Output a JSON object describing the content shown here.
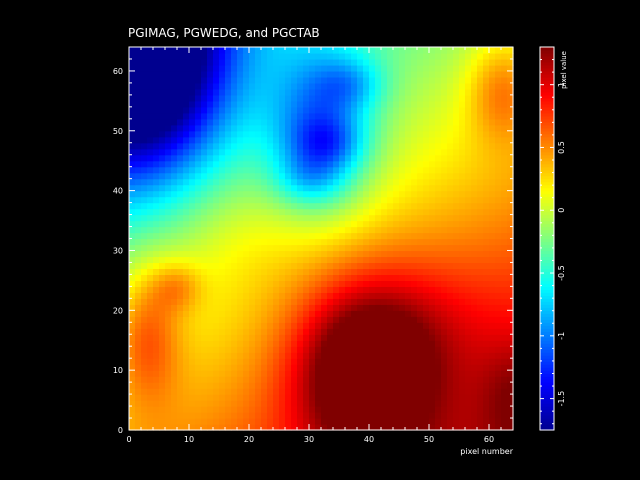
{
  "chart_data": {
    "type": "heatmap",
    "title": "PGIMAG, PGWEDG, and PGCTAB",
    "xlabel": "pixel number",
    "ylabel": "",
    "xlim": [
      0,
      64
    ],
    "ylim": [
      0,
      64
    ],
    "grid_size": 64,
    "x_ticks": [
      0,
      10,
      20,
      30,
      40,
      50,
      60
    ],
    "x_tick_labels": [
      "0",
      "10",
      "20",
      "30",
      "40",
      "50",
      "60"
    ],
    "y_ticks": [
      0,
      10,
      20,
      30,
      40,
      50,
      60
    ],
    "y_tick_labels": [
      "0",
      "10",
      "20",
      "30",
      "40",
      "50",
      "60"
    ],
    "colorbar": {
      "label": "pixel value",
      "range": [
        -1.75,
        1.3
      ],
      "ticks": [
        -1.5,
        -1,
        -0.5,
        0,
        0.5,
        1
      ],
      "tick_labels": [
        "-1.5",
        "-1",
        "-0.5",
        "0",
        "0.5",
        "1"
      ]
    },
    "colormap": {
      "stops": [
        {
          "pos": 0.0,
          "color": "#00008f"
        },
        {
          "pos": 0.125,
          "color": "#0000ff"
        },
        {
          "pos": 0.375,
          "color": "#00ffff"
        },
        {
          "pos": 0.625,
          "color": "#ffff00"
        },
        {
          "pos": 0.875,
          "color": "#ff0000"
        },
        {
          "pos": 1.0,
          "color": "#800000"
        }
      ]
    },
    "field_features": [
      {
        "kind": "base",
        "x_coef": 0.0,
        "y_coef": 0.0,
        "value": 0.35
      },
      {
        "kind": "gradient",
        "x_coef": 0.0125,
        "y_coef": -0.018,
        "value": 0
      },
      {
        "kind": "gaussian",
        "cx": 1,
        "cy": 63,
        "sx": 10,
        "sy": 14,
        "value": -2.2
      },
      {
        "kind": "gaussian",
        "cx": 39,
        "cy": 10,
        "sx": 8,
        "sy": 10,
        "value": 1.1
      },
      {
        "kind": "gaussian",
        "cx": 48,
        "cy": 18,
        "sx": 10,
        "sy": 9,
        "value": 0.25
      },
      {
        "kind": "gaussian",
        "cx": 64,
        "cy": 6,
        "sx": 4,
        "sy": 6,
        "value": 0.25
      },
      {
        "kind": "gaussian",
        "cx": 32,
        "cy": 50,
        "sx": 6,
        "sy": 9,
        "value": -0.9
      },
      {
        "kind": "gaussian",
        "cx": 37,
        "cy": 58,
        "sx": 4,
        "sy": 3,
        "value": -0.35
      },
      {
        "kind": "gaussian",
        "cx": 33,
        "cy": 48,
        "sx": 4,
        "sy": 3,
        "value": -0.35
      },
      {
        "kind": "gaussian",
        "cx": 30,
        "cy": 42,
        "sx": 4,
        "sy": 3,
        "value": -0.3
      },
      {
        "kind": "gaussian",
        "cx": 3,
        "cy": 16,
        "sx": 4,
        "sy": 8,
        "value": 0.55
      },
      {
        "kind": "gaussian",
        "cx": 8,
        "cy": 24,
        "sx": 3,
        "sy": 3,
        "value": 0.35
      },
      {
        "kind": "gaussian",
        "cx": 62,
        "cy": 57,
        "sx": 4,
        "sy": 6,
        "value": 0.45
      },
      {
        "kind": "gaussian",
        "cx": 17,
        "cy": 32,
        "sx": 10,
        "sy": 8,
        "value": 0.15
      }
    ]
  }
}
